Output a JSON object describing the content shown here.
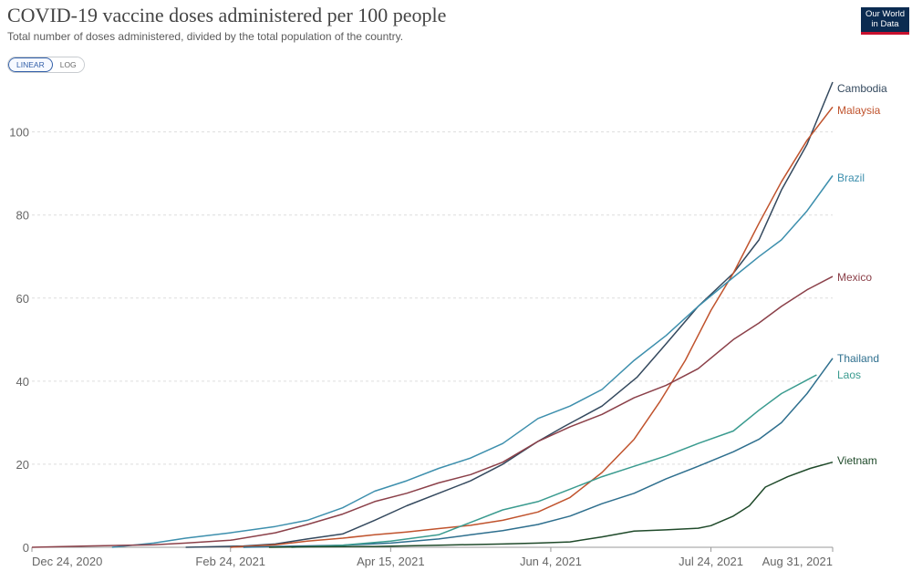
{
  "header": {
    "title": "COVID-19 vaccine doses administered per 100 people",
    "subtitle": "Total number of doses administered, divided by the total population of the country.",
    "logo_line1": "Our World",
    "logo_line2": "in Data"
  },
  "controls": {
    "linear_label": "LINEAR",
    "log_label": "LOG",
    "active": "linear"
  },
  "chart_data": {
    "type": "line",
    "title": "COVID-19 vaccine doses administered per 100 people",
    "subtitle": "Total number of doses administered, divided by the total population of the country.",
    "xlabel": "",
    "ylabel": "",
    "x_domain": [
      "2020-12-24",
      "2021-08-31"
    ],
    "x_ticks": [
      {
        "date": "2020-12-24",
        "label": "Dec 24, 2020"
      },
      {
        "date": "2021-02-24",
        "label": "Feb 24, 2021"
      },
      {
        "date": "2021-04-15",
        "label": "Apr 15, 2021"
      },
      {
        "date": "2021-06-04",
        "label": "Jun 4, 2021"
      },
      {
        "date": "2021-07-24",
        "label": "Jul 24, 2021"
      },
      {
        "date": "2021-08-31",
        "label": "Aug 31, 2021"
      }
    ],
    "ylim": [
      0,
      112
    ],
    "y_ticks": [
      0,
      20,
      40,
      60,
      80,
      100
    ],
    "grid": "horizontal dashed",
    "legend": "inline labels at line ends (right)",
    "series": [
      {
        "name": "Cambodia",
        "color": "#34495e",
        "points": [
          [
            "2021-02-10",
            0.0
          ],
          [
            "2021-02-28",
            0.3
          ],
          [
            "2021-03-10",
            0.8
          ],
          [
            "2021-03-20",
            2.0
          ],
          [
            "2021-03-31",
            3.2
          ],
          [
            "2021-04-10",
            6.5
          ],
          [
            "2021-04-20",
            10.0
          ],
          [
            "2021-04-30",
            13.0
          ],
          [
            "2021-05-10",
            16.0
          ],
          [
            "2021-05-20",
            20.0
          ],
          [
            "2021-05-31",
            25.5
          ],
          [
            "2021-06-08",
            29.0
          ],
          [
            "2021-06-20",
            34.0
          ],
          [
            "2021-07-01",
            41.0
          ],
          [
            "2021-07-10",
            49.0
          ],
          [
            "2021-07-20",
            58.0
          ],
          [
            "2021-07-31",
            66.0
          ],
          [
            "2021-08-08",
            74.0
          ],
          [
            "2021-08-15",
            86.0
          ],
          [
            "2021-08-23",
            97.0
          ],
          [
            "2021-08-31",
            112.0
          ]
        ]
      },
      {
        "name": "Malaysia",
        "color": "#c0532d",
        "points": [
          [
            "2021-02-24",
            0.0
          ],
          [
            "2021-03-10",
            0.6
          ],
          [
            "2021-03-20",
            1.5
          ],
          [
            "2021-03-31",
            2.2
          ],
          [
            "2021-04-10",
            3.0
          ],
          [
            "2021-04-20",
            3.7
          ],
          [
            "2021-04-30",
            4.5
          ],
          [
            "2021-05-10",
            5.3
          ],
          [
            "2021-05-20",
            6.5
          ],
          [
            "2021-05-31",
            8.5
          ],
          [
            "2021-06-10",
            12.0
          ],
          [
            "2021-06-20",
            18.0
          ],
          [
            "2021-06-30",
            26.0
          ],
          [
            "2021-07-08",
            35.0
          ],
          [
            "2021-07-16",
            45.0
          ],
          [
            "2021-07-24",
            57.0
          ],
          [
            "2021-07-31",
            66.0
          ],
          [
            "2021-08-08",
            78.0
          ],
          [
            "2021-08-15",
            88.0
          ],
          [
            "2021-08-23",
            98.0
          ],
          [
            "2021-08-31",
            106.0
          ]
        ]
      },
      {
        "name": "Brazil",
        "color": "#3d8fad",
        "points": [
          [
            "2021-01-18",
            0.0
          ],
          [
            "2021-01-31",
            1.0
          ],
          [
            "2021-02-10",
            2.2
          ],
          [
            "2021-02-24",
            3.5
          ],
          [
            "2021-03-10",
            5.0
          ],
          [
            "2021-03-20",
            6.5
          ],
          [
            "2021-03-31",
            9.5
          ],
          [
            "2021-04-10",
            13.5
          ],
          [
            "2021-04-20",
            16.0
          ],
          [
            "2021-04-30",
            19.0
          ],
          [
            "2021-05-10",
            21.5
          ],
          [
            "2021-05-20",
            25.0
          ],
          [
            "2021-05-31",
            31.0
          ],
          [
            "2021-06-10",
            34.0
          ],
          [
            "2021-06-20",
            38.0
          ],
          [
            "2021-06-30",
            45.0
          ],
          [
            "2021-07-10",
            51.0
          ],
          [
            "2021-07-20",
            58.0
          ],
          [
            "2021-07-31",
            65.0
          ],
          [
            "2021-08-08",
            70.0
          ],
          [
            "2021-08-15",
            74.0
          ],
          [
            "2021-08-23",
            81.0
          ],
          [
            "2021-08-31",
            89.5
          ]
        ]
      },
      {
        "name": "Mexico",
        "color": "#8b4049",
        "points": [
          [
            "2020-12-24",
            0.0
          ],
          [
            "2021-01-10",
            0.3
          ],
          [
            "2021-01-31",
            0.6
          ],
          [
            "2021-02-10",
            1.0
          ],
          [
            "2021-02-24",
            1.7
          ],
          [
            "2021-03-10",
            3.5
          ],
          [
            "2021-03-20",
            5.5
          ],
          [
            "2021-03-31",
            8.0
          ],
          [
            "2021-04-10",
            11.0
          ],
          [
            "2021-04-20",
            13.0
          ],
          [
            "2021-04-30",
            15.5
          ],
          [
            "2021-05-10",
            17.5
          ],
          [
            "2021-05-20",
            20.5
          ],
          [
            "2021-05-31",
            25.5
          ],
          [
            "2021-06-10",
            29.0
          ],
          [
            "2021-06-20",
            32.0
          ],
          [
            "2021-06-30",
            36.0
          ],
          [
            "2021-07-10",
            39.0
          ],
          [
            "2021-07-20",
            43.0
          ],
          [
            "2021-07-31",
            50.0
          ],
          [
            "2021-08-08",
            54.0
          ],
          [
            "2021-08-15",
            58.0
          ],
          [
            "2021-08-23",
            62.0
          ],
          [
            "2021-08-31",
            65.2
          ]
        ]
      },
      {
        "name": "Thailand",
        "color": "#2e6f8e",
        "points": [
          [
            "2021-02-28",
            0.0
          ],
          [
            "2021-03-10",
            0.2
          ],
          [
            "2021-03-31",
            0.5
          ],
          [
            "2021-04-15",
            1.0
          ],
          [
            "2021-04-30",
            2.0
          ],
          [
            "2021-05-10",
            3.0
          ],
          [
            "2021-05-20",
            4.0
          ],
          [
            "2021-05-31",
            5.5
          ],
          [
            "2021-06-10",
            7.5
          ],
          [
            "2021-06-20",
            10.5
          ],
          [
            "2021-06-30",
            13.0
          ],
          [
            "2021-07-10",
            16.5
          ],
          [
            "2021-07-20",
            19.5
          ],
          [
            "2021-07-31",
            23.0
          ],
          [
            "2021-08-08",
            26.0
          ],
          [
            "2021-08-15",
            30.0
          ],
          [
            "2021-08-23",
            37.0
          ],
          [
            "2021-08-31",
            45.5
          ]
        ]
      },
      {
        "name": "Laos",
        "color": "#3a9b8f",
        "points": [
          [
            "2021-03-15",
            0.0
          ],
          [
            "2021-03-31",
            0.5
          ],
          [
            "2021-04-15",
            1.5
          ],
          [
            "2021-04-30",
            3.0
          ],
          [
            "2021-05-10",
            6.0
          ],
          [
            "2021-05-20",
            9.0
          ],
          [
            "2021-05-31",
            11.0
          ],
          [
            "2021-06-10",
            14.0
          ],
          [
            "2021-06-20",
            17.0
          ],
          [
            "2021-06-30",
            19.5
          ],
          [
            "2021-07-10",
            22.0
          ],
          [
            "2021-07-20",
            25.0
          ],
          [
            "2021-07-31",
            28.0
          ],
          [
            "2021-08-08",
            33.0
          ],
          [
            "2021-08-15",
            37.0
          ],
          [
            "2021-08-26",
            41.5
          ]
        ]
      },
      {
        "name": "Vietnam",
        "color": "#1f4a2a",
        "points": [
          [
            "2021-03-08",
            0.0
          ],
          [
            "2021-03-20",
            0.1
          ],
          [
            "2021-04-10",
            0.2
          ],
          [
            "2021-04-30",
            0.5
          ],
          [
            "2021-05-20",
            0.8
          ],
          [
            "2021-05-31",
            1.0
          ],
          [
            "2021-06-10",
            1.3
          ],
          [
            "2021-06-20",
            2.5
          ],
          [
            "2021-06-30",
            3.9
          ],
          [
            "2021-07-10",
            4.2
          ],
          [
            "2021-07-20",
            4.6
          ],
          [
            "2021-07-24",
            5.2
          ],
          [
            "2021-07-31",
            7.5
          ],
          [
            "2021-08-05",
            10.0
          ],
          [
            "2021-08-10",
            14.5
          ],
          [
            "2021-08-17",
            17.0
          ],
          [
            "2021-08-24",
            19.0
          ],
          [
            "2021-08-31",
            20.5
          ]
        ]
      }
    ]
  }
}
